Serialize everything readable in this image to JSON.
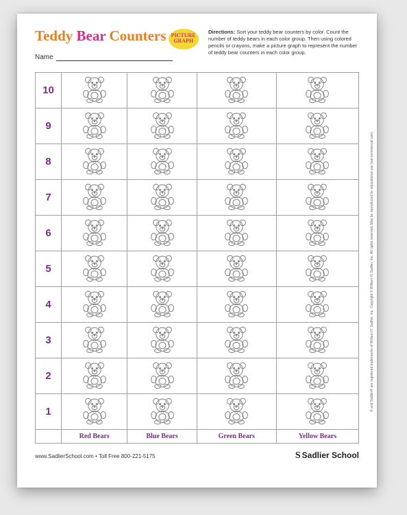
{
  "title": {
    "word1": "Teddy",
    "word2": "Bear",
    "word3": "Counters"
  },
  "badge": {
    "line1": "PICTURE",
    "line2": "GRAPH"
  },
  "directions_label": "Directions:",
  "directions_text": "Sort your teddy bear counters by color. Count the number of teddy bears in each color group. Then using colored pencils or crayons, make a picture graph to represent the number of teddy bear counters in each color group.",
  "name_label": "Name",
  "rows": [
    "10",
    "9",
    "8",
    "7",
    "6",
    "5",
    "4",
    "3",
    "2",
    "1"
  ],
  "columns": [
    "Red Bears",
    "Blue Bears",
    "Green Bears",
    "Yellow Bears"
  ],
  "footer_left": "www.SadlierSchool.com  •  Toll Free 800-221-5175",
  "footer_brand": "Sadlier School",
  "side_copyright": "® and Sadlier® are registered trademarks of William H. Sadlier, Inc.    Copyright © William H. Sadlier, Inc. All rights reserved.    May be reproduced for educational use (not commercial use).",
  "grid_border_color": "#50bcd8",
  "number_color": "#7d2a8c",
  "label_color": "#7d2a8c",
  "title_color_orange": "#e97e1e",
  "title_color_pink": "#d72c8a",
  "badge_bg": "#f2d830"
}
